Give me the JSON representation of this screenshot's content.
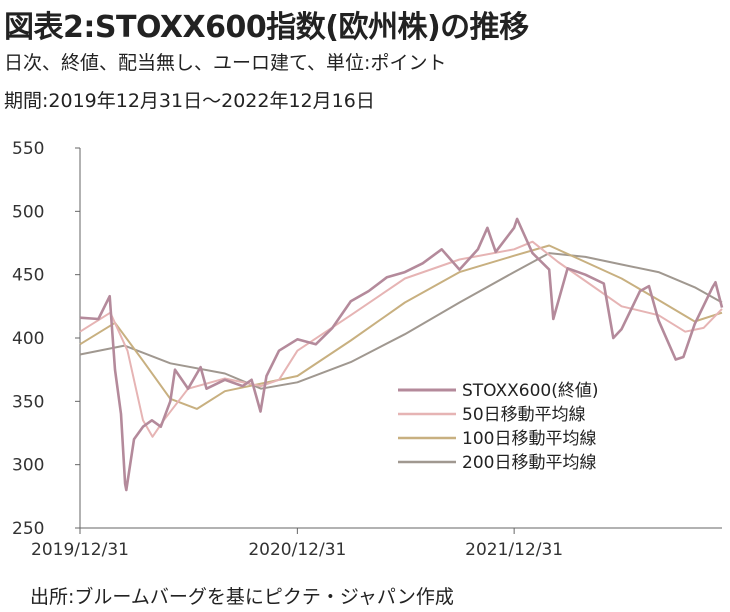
{
  "header": {
    "title": "図表2:STOXX600指数(欧州株)の推移",
    "subtitle1": "日次、終値、配当無し、ユーロ建て、単位:ポイント",
    "subtitle2": "期間:2019年12月31日〜2022年12月16日"
  },
  "footer": {
    "source": "出所:ブルームバーグを基にピクテ・ジャパン作成"
  },
  "chart_data": {
    "type": "line",
    "title": "図表2:STOXX600指数(欧州株)の推移",
    "xlabel": "",
    "ylabel": "",
    "x_range": [
      "2019-12-31",
      "2022-12-16"
    ],
    "ylim": [
      250,
      550
    ],
    "yticks": [
      "550",
      "500",
      "450",
      "400",
      "350",
      "300",
      "250"
    ],
    "xticks": [
      "2019/12/31",
      "2020/12/31",
      "2021/12/31"
    ],
    "grid": false,
    "legend_position": "lower-right",
    "series": [
      {
        "name": "STOXX600(終値)",
        "color": "#b48a9b",
        "points": [
          [
            "2019-12-31",
            416
          ],
          [
            "2020-01-31",
            415
          ],
          [
            "2020-02-19",
            433
          ],
          [
            "2020-02-28",
            375
          ],
          [
            "2020-03-09",
            340
          ],
          [
            "2020-03-16",
            285
          ],
          [
            "2020-03-18",
            280
          ],
          [
            "2020-03-31",
            320
          ],
          [
            "2020-04-15",
            330
          ],
          [
            "2020-04-30",
            335
          ],
          [
            "2020-05-15",
            330
          ],
          [
            "2020-05-31",
            350
          ],
          [
            "2020-06-08",
            375
          ],
          [
            "2020-06-30",
            360
          ],
          [
            "2020-07-21",
            377
          ],
          [
            "2020-07-31",
            360
          ],
          [
            "2020-08-31",
            367
          ],
          [
            "2020-09-30",
            362
          ],
          [
            "2020-10-15",
            367
          ],
          [
            "2020-10-30",
            342
          ],
          [
            "2020-11-09",
            370
          ],
          [
            "2020-11-30",
            390
          ],
          [
            "2020-12-31",
            399
          ],
          [
            "2021-01-31",
            395
          ],
          [
            "2021-02-28",
            408
          ],
          [
            "2021-03-31",
            429
          ],
          [
            "2021-04-30",
            437
          ],
          [
            "2021-05-31",
            448
          ],
          [
            "2021-06-30",
            452
          ],
          [
            "2021-07-30",
            459
          ],
          [
            "2021-08-31",
            470
          ],
          [
            "2021-09-30",
            454
          ],
          [
            "2021-10-31",
            470
          ],
          [
            "2021-11-16",
            487
          ],
          [
            "2021-11-30",
            468
          ],
          [
            "2021-12-31",
            487
          ],
          [
            "2022-01-05",
            494
          ],
          [
            "2022-01-31",
            467
          ],
          [
            "2022-02-28",
            454
          ],
          [
            "2022-03-07",
            415
          ],
          [
            "2022-03-31",
            455
          ],
          [
            "2022-04-30",
            450
          ],
          [
            "2022-05-31",
            443
          ],
          [
            "2022-06-16",
            400
          ],
          [
            "2022-06-30",
            407
          ],
          [
            "2022-07-31",
            437
          ],
          [
            "2022-08-15",
            441
          ],
          [
            "2022-08-31",
            414
          ],
          [
            "2022-09-29",
            383
          ],
          [
            "2022-10-12",
            385
          ],
          [
            "2022-10-31",
            411
          ],
          [
            "2022-11-30",
            440
          ],
          [
            "2022-12-05",
            444
          ],
          [
            "2022-12-16",
            424
          ]
        ]
      },
      {
        "name": "50日移動平均線",
        "color": "#e6b4b4",
        "points": [
          [
            "2019-12-31",
            405
          ],
          [
            "2020-02-20",
            420
          ],
          [
            "2020-03-20",
            390
          ],
          [
            "2020-04-15",
            335
          ],
          [
            "2020-05-01",
            322
          ],
          [
            "2020-05-20",
            335
          ],
          [
            "2020-06-30",
            360
          ],
          [
            "2020-08-31",
            368
          ],
          [
            "2020-10-31",
            362
          ],
          [
            "2020-11-30",
            367
          ],
          [
            "2020-12-31",
            390
          ],
          [
            "2021-03-31",
            418
          ],
          [
            "2021-06-30",
            447
          ],
          [
            "2021-09-30",
            462
          ],
          [
            "2021-12-31",
            470
          ],
          [
            "2022-01-31",
            476
          ],
          [
            "2022-03-15",
            460
          ],
          [
            "2022-04-30",
            445
          ],
          [
            "2022-06-30",
            425
          ],
          [
            "2022-08-31",
            418
          ],
          [
            "2022-10-15",
            405
          ],
          [
            "2022-11-15",
            408
          ],
          [
            "2022-12-16",
            423
          ]
        ]
      },
      {
        "name": "100日移動平均線",
        "color": "#c8b080",
        "points": [
          [
            "2019-12-31",
            395
          ],
          [
            "2020-02-28",
            412
          ],
          [
            "2020-04-15",
            382
          ],
          [
            "2020-05-31",
            352
          ],
          [
            "2020-07-15",
            344
          ],
          [
            "2020-08-31",
            358
          ],
          [
            "2020-10-31",
            364
          ],
          [
            "2020-12-31",
            370
          ],
          [
            "2021-03-31",
            398
          ],
          [
            "2021-06-30",
            428
          ],
          [
            "2021-09-30",
            452
          ],
          [
            "2021-12-31",
            465
          ],
          [
            "2022-02-28",
            473
          ],
          [
            "2022-04-30",
            460
          ],
          [
            "2022-06-30",
            447
          ],
          [
            "2022-08-31",
            430
          ],
          [
            "2022-10-31",
            413
          ],
          [
            "2022-12-16",
            420
          ]
        ]
      },
      {
        "name": "200日移動平均線",
        "color": "#a09890",
        "points": [
          [
            "2019-12-31",
            387
          ],
          [
            "2020-03-15",
            394
          ],
          [
            "2020-05-31",
            380
          ],
          [
            "2020-08-31",
            372
          ],
          [
            "2020-10-31",
            360
          ],
          [
            "2020-12-31",
            365
          ],
          [
            "2021-03-31",
            381
          ],
          [
            "2021-06-30",
            403
          ],
          [
            "2021-09-30",
            428
          ],
          [
            "2021-12-31",
            452
          ],
          [
            "2022-02-28",
            467
          ],
          [
            "2022-04-30",
            464
          ],
          [
            "2022-06-30",
            458
          ],
          [
            "2022-08-31",
            452
          ],
          [
            "2022-10-31",
            440
          ],
          [
            "2022-12-16",
            428
          ]
        ]
      }
    ]
  }
}
